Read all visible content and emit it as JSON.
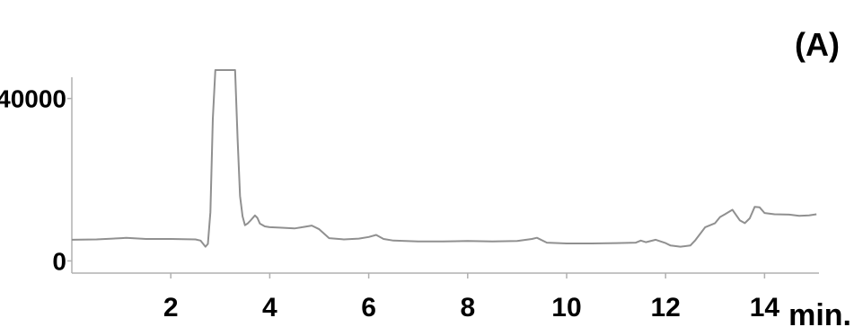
{
  "chart_data": {
    "type": "line",
    "panel_label": "(A)",
    "x_unit_label": "min.",
    "xlim": [
      0,
      15.1
    ],
    "ylim": [
      -3000,
      47000
    ],
    "x_ticks": [
      2,
      4,
      6,
      8,
      10,
      12,
      14
    ],
    "y_ticks": [
      0,
      40000
    ],
    "x_tick_labels": [
      "2",
      "4",
      "6",
      "8",
      "10",
      "12",
      "14"
    ],
    "y_tick_labels": [
      "0",
      "40000"
    ],
    "grid": false,
    "series": [
      {
        "color": "#909090",
        "x": [
          0.0,
          0.5,
          1.0,
          1.1,
          1.5,
          2.0,
          2.5,
          2.6,
          2.7,
          2.75,
          2.8,
          2.85,
          2.9,
          3.3,
          3.35,
          3.4,
          3.45,
          3.5,
          3.55,
          3.6,
          3.7,
          3.75,
          3.8,
          3.9,
          4.0,
          4.2,
          4.5,
          4.7,
          4.85,
          5.0,
          5.2,
          5.5,
          5.8,
          6.0,
          6.15,
          6.3,
          6.5,
          7.0,
          7.5,
          8.0,
          8.5,
          9.0,
          9.3,
          9.4,
          9.6,
          10.0,
          10.5,
          11.0,
          11.4,
          11.5,
          11.6,
          11.8,
          12.0,
          12.1,
          12.3,
          12.5,
          12.6,
          12.8,
          13.0,
          13.1,
          13.2,
          13.35,
          13.5,
          13.6,
          13.7,
          13.8,
          13.9,
          14.0,
          14.2,
          14.5,
          14.7,
          14.9,
          15.05
        ],
        "y": [
          5200,
          5300,
          5600,
          5700,
          5400,
          5400,
          5300,
          5000,
          3500,
          4200,
          12000,
          35000,
          47000,
          47000,
          30000,
          16000,
          11000,
          8800,
          9200,
          9800,
          11200,
          10600,
          9200,
          8500,
          8300,
          8200,
          8000,
          8400,
          8700,
          7800,
          5600,
          5300,
          5500,
          5900,
          6400,
          5400,
          5000,
          4800,
          4800,
          4900,
          4800,
          4900,
          5400,
          5700,
          4500,
          4300,
          4300,
          4400,
          4500,
          5000,
          4600,
          5200,
          4400,
          3800,
          3500,
          3800,
          5100,
          8300,
          9300,
          10800,
          11500,
          12600,
          10000,
          9300,
          10500,
          13300,
          13200,
          11800,
          11500,
          11400,
          11100,
          11200,
          11500
        ]
      }
    ]
  }
}
